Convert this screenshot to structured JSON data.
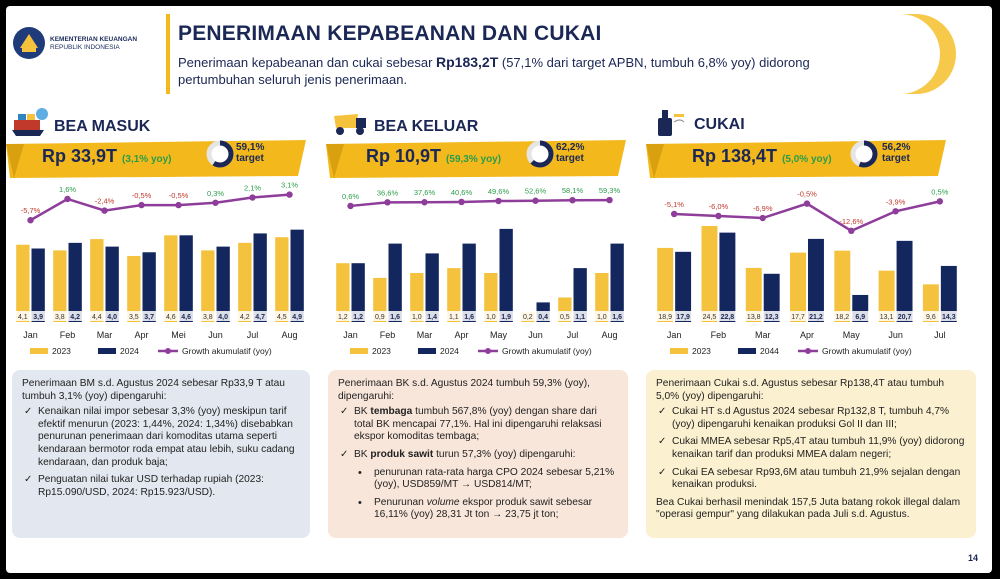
{
  "org": {
    "name": "KEMENTERIAN KEUANGAN",
    "sub": "REPUBLIK INDONESIA"
  },
  "header": {
    "title": "PENERIMAAN KEPABEANAN DAN CUKAI",
    "sub_pre": "Penerimaan kepabeanan dan cukai sebesar ",
    "sub_amount": "Rp183,2T",
    "sub_post": " (57,1% dari target APBN, tumbuh 6,8% yoy) didorong pertumbuhan seluruh jenis penerimaan."
  },
  "colors": {
    "y2023": "#f5c23e",
    "y2024": "#13275e",
    "growth": "#8e3d9a",
    "navy": "#1b2754"
  },
  "panels": [
    {
      "title": "BEA MASUK",
      "amount": "Rp 33,9T",
      "growth": "(3,1% yoy)",
      "target_pct": "59,1%",
      "target_label": "target",
      "icon": "ship-icon",
      "legend": [
        "2023",
        "2024",
        "Growth akumulatif (yoy)"
      ]
    },
    {
      "title": "BEA KELUAR",
      "amount": "Rp 10,9T",
      "growth": "(59,3% yoy)",
      "target_pct": "62,2%",
      "target_label": "target",
      "icon": "truck-icon",
      "legend": [
        "2023",
        "2024",
        "Growth akumulatif (yoy)"
      ]
    },
    {
      "title": "CUKAI",
      "amount": "Rp 138,4T",
      "growth": "(5,0% yoy)",
      "target_pct": "56,2%",
      "target_label": "target",
      "icon": "bottle-icon",
      "legend": [
        "2023",
        "2044",
        "Growth akumulatif (yoy)"
      ]
    }
  ],
  "chart_data": [
    {
      "type": "bar",
      "categories": [
        "Jan",
        "Feb",
        "Mar",
        "Apr",
        "Mei",
        "Jun",
        "Jul",
        "Aug"
      ],
      "series": [
        {
          "name": "2023",
          "values": [
            4.1,
            3.8,
            4.4,
            3.5,
            4.6,
            3.8,
            4.2,
            4.5
          ]
        },
        {
          "name": "2024",
          "values": [
            3.9,
            4.2,
            4.0,
            3.7,
            4.6,
            4.0,
            4.7,
            4.9
          ]
        },
        {
          "name": "Growth akumulatif (yoy)",
          "type": "line",
          "values": [
            -5.7,
            1.6,
            -2.4,
            -0.5,
            -0.5,
            0.3,
            2.1,
            3.1
          ]
        }
      ],
      "bar_labels": [
        [
          "4,1",
          "3,9"
        ],
        [
          "3,8",
          "4,2"
        ],
        [
          "4,4",
          "4,0"
        ],
        [
          "3,5",
          "3,7"
        ],
        [
          "4,6",
          "4,6"
        ],
        [
          "3,8",
          "4,0"
        ],
        [
          "4,2",
          "4,7"
        ],
        [
          "4,5",
          "4,9"
        ]
      ],
      "line_labels": [
        "-5,7%",
        "1,6%",
        "-2,4%",
        "-0,5%",
        "-0,5%",
        "0,3%",
        "2,1%",
        "3,1%"
      ]
    },
    {
      "type": "bar",
      "categories": [
        "Jan",
        "Feb",
        "Mar",
        "Apr",
        "May",
        "Jun",
        "Jul",
        "Aug"
      ],
      "series": [
        {
          "name": "2023",
          "values": [
            1.2,
            0.9,
            1.0,
            1.1,
            1.0,
            0.2,
            0.5,
            1.0
          ]
        },
        {
          "name": "2024",
          "values": [
            1.2,
            1.6,
            1.4,
            1.6,
            1.9,
            0.4,
            1.1,
            1.6
          ]
        },
        {
          "name": "Growth akumulatif (yoy)",
          "type": "line",
          "values": [
            0.6,
            36.6,
            37.6,
            40.6,
            49.6,
            52.6,
            58.1,
            59.3
          ]
        }
      ],
      "bar_labels": [
        [
          "1,2",
          "1,2"
        ],
        [
          "0,9",
          "1,6"
        ],
        [
          "1,0",
          "1,4"
        ],
        [
          "1,1",
          "1,6"
        ],
        [
          "1,0",
          "1,9"
        ],
        [
          "0,2",
          "0,4"
        ],
        [
          "0,5",
          "1,1"
        ],
        [
          "1,0",
          "1,6"
        ]
      ],
      "line_labels": [
        "0,6%",
        "36,6%",
        "37,6%",
        "40,6%",
        "49,6%",
        "52,6%",
        "58,1%",
        "59,3%"
      ]
    },
    {
      "type": "bar",
      "categories": [
        "Jan",
        "Feb",
        "Mar",
        "Apr",
        "May",
        "Jun",
        "Jul"
      ],
      "series": [
        {
          "name": "2023",
          "values": [
            18.9,
            24.5,
            13.8,
            17.7,
            18.2,
            13.1,
            9.6
          ]
        },
        {
          "name": "2044",
          "values": [
            17.9,
            22.8,
            12.3,
            21.2,
            6.9,
            20.7,
            14.3
          ]
        },
        {
          "name": "Growth akumulatif (yoy)",
          "type": "line",
          "values": [
            -5.1,
            -6.0,
            -6.9,
            -0.5,
            -12.6,
            -3.9,
            0.5
          ]
        }
      ],
      "bar_labels": [
        [
          "18,9",
          "17,9"
        ],
        [
          "24,5",
          "22,8"
        ],
        [
          "13,8",
          "12,3"
        ],
        [
          "17,7",
          "21,2"
        ],
        [
          "18,2",
          "6,9"
        ],
        [
          "13,1",
          "20,7"
        ],
        [
          "9,6",
          "14,3"
        ]
      ],
      "line_labels": [
        "-5,1%",
        "-6,0%",
        "-6,9%",
        "-0,5%",
        "-12,6%",
        "-3,9%",
        "0,5%"
      ]
    }
  ],
  "boxes": {
    "bm": {
      "intro": "Penerimaan BM s.d. Agustus 2024 sebesar Rp33,9 T atau tumbuh 3,1% (yoy) dipengaruhi:",
      "items": [
        "Kenaikan nilai impor sebesar 3,3% (yoy) meskipun tarif efektif menurun (2023: 1,44%, 2024: 1,34%) disebabkan penurunan penerimaan dari komoditas utama seperti kendaraan bermotor roda empat atau lebih, suku cadang kendaraan, dan produk baja;",
        "Penguatan nilai tukar USD terhadap rupiah (2023: Rp15.090/USD, 2024: Rp15.923/USD)."
      ]
    },
    "bk": {
      "intro": "Penerimaan BK s.d. Agustus 2024 tumbuh 59,3% (yoy), dipengaruhi:",
      "item1_pre": "BK ",
      "item1_bold": "tembaga",
      "item1_post": " tumbuh 567,8% (yoy) dengan share dari total BK mencapai 77,1%. Hal ini dipengaruhi relaksasi ekspor komoditas tembaga;",
      "item2_pre": "BK ",
      "item2_bold": "produk sawit",
      "item2_post": " turun 57,3% (yoy) dipengaruhi:",
      "sub1": "penurunan rata-rata harga CPO 2024 sebesar 5,21% (yoy), USD859/MT → USD814/MT;",
      "sub2_pre": "Penurunan ",
      "sub2_it": "volume",
      "sub2_post": " ekspor produk sawit sebesar 16,11% (yoy) 28,31 Jt ton → 23,75 jt ton;"
    },
    "ck": {
      "intro": "Penerimaan Cukai s.d. Agustus sebesar Rp138,4T atau tumbuh 5,0% (yoy) dipengaruhi:",
      "items": [
        "Cukai HT s.d Agustus 2024 sebesar Rp132,8 T, tumbuh 4,7% (yoy) dipengaruhi kenaikan produksi Gol II dan III;",
        "Cukai MMEA sebesar Rp5,4T atau tumbuh 11,9% (yoy) didorong kenaikan tarif dan produksi MMEA dalam negeri;",
        "Cukai EA sebesar Rp93,6M atau tumbuh 21,9% sejalan dengan kenaikan produksi."
      ],
      "closing": "Bea Cukai berhasil menindak 157,5 Juta batang rokok illegal dalam \"operasi gempur\" yang dilakukan pada Juli s.d. Agustus."
    }
  },
  "page_number": "14"
}
